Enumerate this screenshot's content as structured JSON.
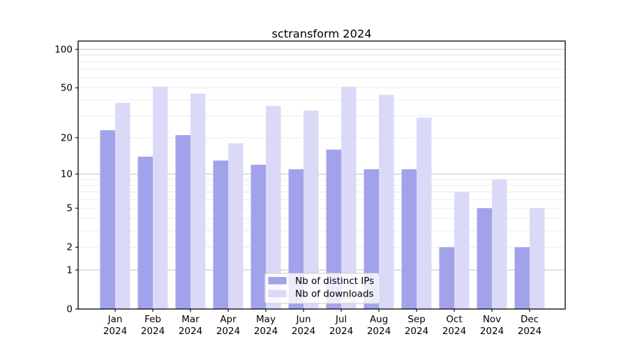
{
  "chart_data": {
    "type": "bar",
    "title": "sctransform 2024",
    "categories": [
      "Jan 2024",
      "Feb 2024",
      "Mar 2024",
      "Apr 2024",
      "May 2024",
      "Jun 2024",
      "Jul 2024",
      "Aug 2024",
      "Sep 2024",
      "Oct 2024",
      "Nov 2024",
      "Dec 2024"
    ],
    "series": [
      {
        "name": "Nb of distinct IPs",
        "color": "#a2a2eb",
        "values": [
          23,
          14,
          21,
          13,
          12,
          11,
          16,
          11,
          11,
          2,
          5,
          2
        ]
      },
      {
        "name": "Nb of downloads",
        "color": "#dadaf8",
        "values": [
          38,
          51,
          45,
          18,
          36,
          33,
          51,
          44,
          29,
          7,
          9,
          5
        ]
      }
    ],
    "xlabel": "",
    "ylabel": "",
    "y_scale": "log1p",
    "y_ticks": [
      0,
      1,
      2,
      5,
      10,
      20,
      50,
      100
    ],
    "ylim": [
      0,
      117
    ],
    "grid": true,
    "legend_position": "lower center"
  },
  "style": {
    "background": "#ffffff",
    "grid_minor_color": "#ebebeb",
    "grid_major_color": "#c8c8c8",
    "axis_color": "#000000",
    "text_color": "#000000",
    "legend_background": "rgba(255,255,255,0.8)",
    "legend_border": "#cccccc"
  }
}
